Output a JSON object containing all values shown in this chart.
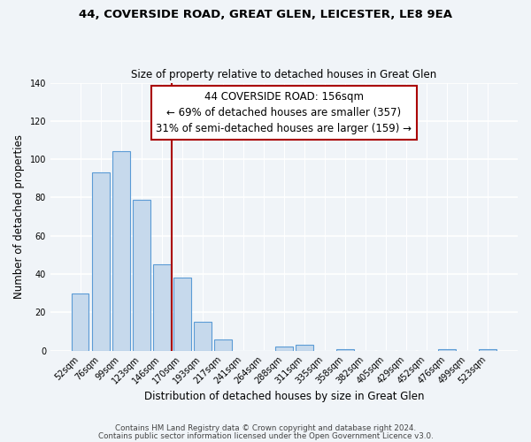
{
  "title1": "44, COVERSIDE ROAD, GREAT GLEN, LEICESTER, LE8 9EA",
  "title2": "Size of property relative to detached houses in Great Glen",
  "xlabel": "Distribution of detached houses by size in Great Glen",
  "ylabel": "Number of detached properties",
  "bar_labels": [
    "52sqm",
    "76sqm",
    "99sqm",
    "123sqm",
    "146sqm",
    "170sqm",
    "193sqm",
    "217sqm",
    "241sqm",
    "264sqm",
    "288sqm",
    "311sqm",
    "335sqm",
    "358sqm",
    "382sqm",
    "405sqm",
    "429sqm",
    "452sqm",
    "476sqm",
    "499sqm",
    "523sqm"
  ],
  "bar_values": [
    30,
    93,
    104,
    79,
    45,
    38,
    15,
    6,
    0,
    0,
    2,
    3,
    0,
    1,
    0,
    0,
    0,
    0,
    1,
    0,
    1
  ],
  "bar_color": "#c6d9ec",
  "bar_edge_color": "#5b9bd5",
  "vline_x": 4.5,
  "vline_color": "#aa0000",
  "annotation_title": "44 COVERSIDE ROAD: 156sqm",
  "annotation_line1": "← 69% of detached houses are smaller (357)",
  "annotation_line2": "31% of semi-detached houses are larger (159) →",
  "annotation_box_color": "#ffffff",
  "annotation_box_edge": "#aa0000",
  "ylim": [
    0,
    140
  ],
  "yticks": [
    0,
    20,
    40,
    60,
    80,
    100,
    120,
    140
  ],
  "footer1": "Contains HM Land Registry data © Crown copyright and database right 2024.",
  "footer2": "Contains public sector information licensed under the Open Government Licence v3.0.",
  "background_color": "#f0f4f8"
}
